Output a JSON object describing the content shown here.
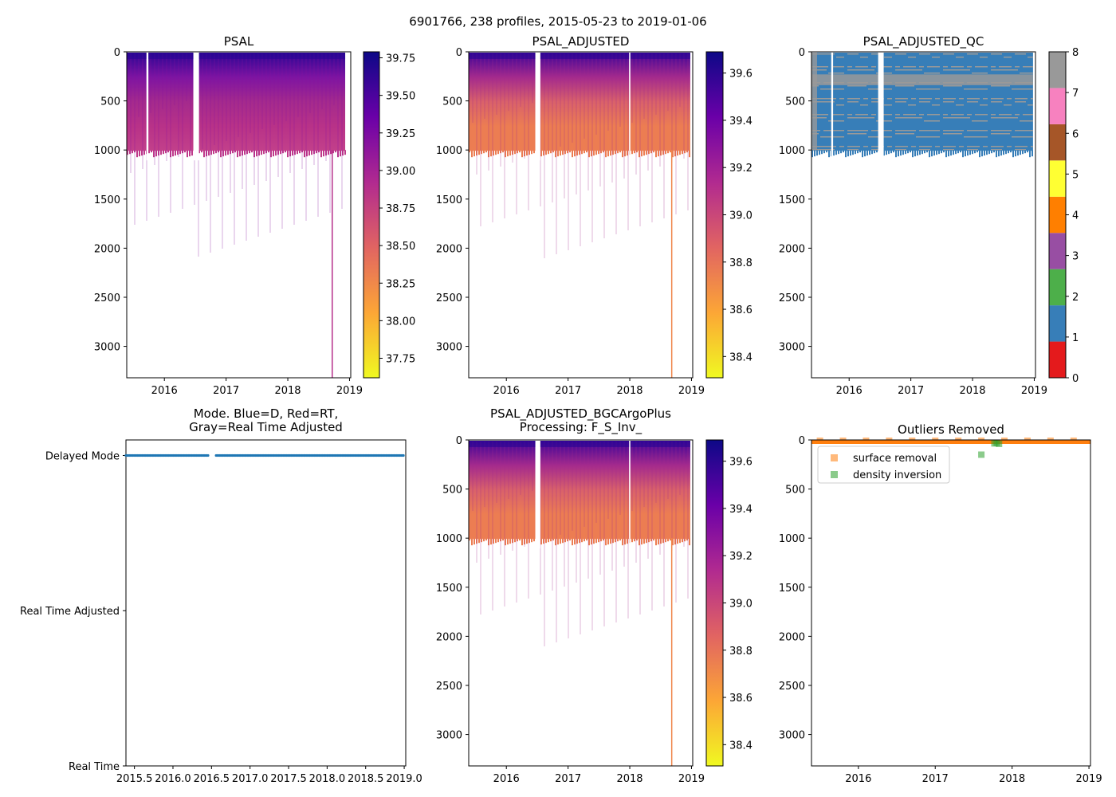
{
  "figure": {
    "suptitle": "6901766, 238 profiles, 2015-05-23 to 2019-01-06"
  },
  "chart_data": [
    {
      "id": "psal",
      "type": "heatmap",
      "title": "PSAL",
      "xlabel": "",
      "ylabel": "",
      "xlim": [
        2015.39,
        2019.02
      ],
      "ylim": [
        3320,
        0
      ],
      "xticks": [
        2016,
        2017,
        2018,
        2019
      ],
      "yticks": [
        0,
        500,
        1000,
        1500,
        2000,
        2500,
        3000
      ],
      "profile_start": 2015.39,
      "profile_end": 2018.93,
      "main_depth": 1000,
      "gaps": [
        [
          2015.71,
          2015.74
        ],
        [
          2016.47,
          2016.56
        ]
      ],
      "deep_profile": {
        "date": 2018.72,
        "depth": 3320
      },
      "colormap": "plasma_r",
      "colorbar": {
        "min": 37.62,
        "max": 39.79,
        "ticks": [
          37.75,
          38.0,
          38.25,
          38.5,
          38.75,
          39.0,
          39.25,
          39.5,
          39.75
        ],
        "labels": [
          "37.75",
          "38.00",
          "38.25",
          "38.50",
          "38.75",
          "39.00",
          "39.25",
          "39.50",
          "39.75"
        ]
      },
      "deep_value": 38.88
    },
    {
      "id": "psal_adjusted",
      "type": "heatmap",
      "title": "PSAL_ADJUSTED",
      "xlabel": "",
      "ylabel": "",
      "xlim": [
        2015.39,
        2019.02
      ],
      "ylim": [
        3320,
        0
      ],
      "xticks": [
        2016,
        2017,
        2018,
        2019
      ],
      "yticks": [
        0,
        500,
        1000,
        1500,
        2000,
        2500,
        3000
      ],
      "profile_start": 2015.39,
      "profile_end": 2018.98,
      "main_depth": 1000,
      "gaps": [
        [
          2016.47,
          2016.55
        ],
        [
          2017.99,
          2018.0
        ]
      ],
      "deep_profile": {
        "date": 2018.68,
        "depth": 3320
      },
      "colormap": "plasma_r",
      "colorbar": {
        "min": 38.31,
        "max": 39.69,
        "ticks": [
          38.4,
          38.6,
          38.8,
          39.0,
          39.2,
          39.4,
          39.6
        ],
        "labels": [
          "38.4",
          "38.6",
          "38.8",
          "39.0",
          "39.2",
          "39.4",
          "39.6"
        ]
      },
      "deep_value": 38.72
    },
    {
      "id": "psal_adjusted_qc",
      "type": "heatmap",
      "title": "PSAL_ADJUSTED_QC",
      "xlabel": "",
      "ylabel": "",
      "xlim": [
        2015.39,
        2019.02
      ],
      "ylim": [
        3320,
        0
      ],
      "xticks": [
        2016,
        2017,
        2018,
        2019
      ],
      "yticks": [
        0,
        500,
        1000,
        1500,
        2000,
        2500,
        3000
      ],
      "profile_start": 2015.39,
      "profile_end": 2018.98,
      "main_depth": 1000,
      "gaps": [
        [
          2015.71,
          2015.74
        ],
        [
          2016.47,
          2016.56
        ]
      ],
      "qc_colorbar": {
        "min": 0,
        "max": 8,
        "ticks": [
          0,
          1,
          2,
          3,
          4,
          5,
          6,
          7,
          8
        ],
        "labels": [
          "0",
          "1",
          "2",
          "3",
          "4",
          "5",
          "6",
          "7",
          "8"
        ],
        "colors": [
          "#e41a1c",
          "#377eb8",
          "#4daf4a",
          "#984ea3",
          "#ff7f00",
          "#ffff33",
          "#a65628",
          "#f781bf",
          "#999999"
        ]
      }
    },
    {
      "id": "mode",
      "type": "scatter",
      "title_lines": [
        "Mode. Blue=D, Red=RT,",
        "Gray=Real Time Adjusted"
      ],
      "xlabel": "",
      "ylabel": "",
      "xlim": [
        2015.39,
        2019.02
      ],
      "ylim": [
        0,
        2.1
      ],
      "xticks": [
        2015.5,
        2016.0,
        2016.5,
        2017.0,
        2017.5,
        2018.0,
        2018.5,
        2019.0
      ],
      "xtick_labels": [
        "2015.5",
        "2016.0",
        "2016.5",
        "2017.0",
        "2017.5",
        "2018.0",
        "2018.5",
        "2019.0"
      ],
      "yticks": [
        0,
        1,
        2
      ],
      "ytick_labels": [
        "Real Time",
        "Real Time Adjusted",
        "Delayed Mode"
      ],
      "series": [
        {
          "name": "Delayed Mode",
          "color": "#1f77b4",
          "y": 2,
          "segments": [
            [
              2015.39,
              2016.47
            ],
            [
              2016.56,
              2019.0
            ]
          ]
        }
      ]
    },
    {
      "id": "psal_bgc",
      "type": "heatmap",
      "title_lines": [
        "PSAL_ADJUSTED_BGCArgoPlus",
        "Processing: F_S_Inv_"
      ],
      "xlabel": "",
      "ylabel": "",
      "xlim": [
        2015.39,
        2019.02
      ],
      "ylim": [
        3320,
        0
      ],
      "xticks": [
        2016,
        2017,
        2018,
        2019
      ],
      "yticks": [
        0,
        500,
        1000,
        1500,
        2000,
        2500,
        3000
      ],
      "profile_start": 2015.39,
      "profile_end": 2018.98,
      "main_depth": 1000,
      "gaps": [
        [
          2016.47,
          2016.55
        ],
        [
          2017.99,
          2018.0
        ]
      ],
      "deep_profile": {
        "date": 2018.68,
        "depth": 3320
      },
      "colormap": "plasma_r",
      "colorbar": {
        "min": 38.31,
        "max": 39.69,
        "ticks": [
          38.4,
          38.6,
          38.8,
          39.0,
          39.2,
          39.4,
          39.6
        ],
        "labels": [
          "38.4",
          "38.6",
          "38.8",
          "39.0",
          "39.2",
          "39.4",
          "39.6"
        ]
      },
      "deep_value": 38.72
    },
    {
      "id": "outliers",
      "type": "scatter",
      "title": "Outliers Removed",
      "xlabel": "",
      "ylabel": "",
      "xlim": [
        2015.39,
        2019.02
      ],
      "ylim": [
        3320,
        0
      ],
      "xticks": [
        2016,
        2017,
        2018,
        2019
      ],
      "yticks": [
        0,
        500,
        1000,
        1500,
        2000,
        2500,
        3000
      ],
      "legend": "top-left",
      "series": [
        {
          "name": "surface removal",
          "color": "#ff7f0e",
          "points": [
            [
              2015.5,
              8
            ],
            [
              2015.8,
              8
            ],
            [
              2016.1,
              8
            ],
            [
              2016.4,
              8
            ],
            [
              2016.7,
              8
            ],
            [
              2017.0,
              8
            ],
            [
              2017.3,
              8
            ],
            [
              2017.6,
              8
            ],
            [
              2017.9,
              8
            ],
            [
              2018.2,
              8
            ],
            [
              2018.5,
              8
            ],
            [
              2018.8,
              8
            ]
          ]
        },
        {
          "name": "density inversion",
          "color": "#2ca02c",
          "points": [
            [
              2017.6,
              150
            ],
            [
              2017.77,
              35
            ],
            [
              2017.8,
              30
            ],
            [
              2017.83,
              40
            ]
          ]
        }
      ]
    }
  ]
}
